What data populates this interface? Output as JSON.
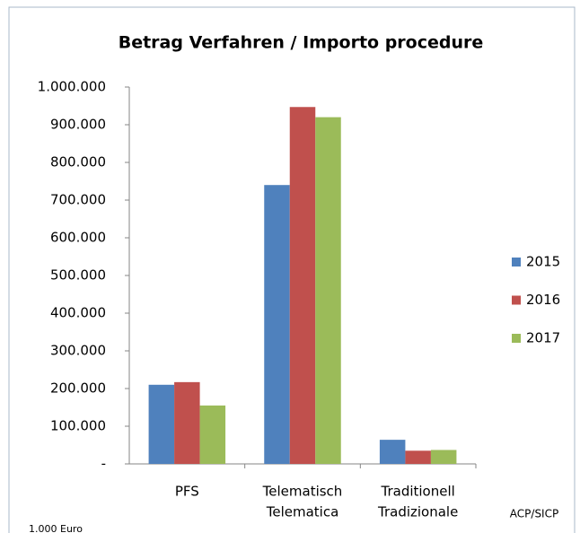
{
  "chart_data": {
    "type": "bar",
    "title": "Betrag Verfahren / Importo procedure",
    "categories": [
      [
        "PFS"
      ],
      [
        "Telematisch",
        "Telematica"
      ],
      [
        "Traditionell",
        "Tradizionale"
      ]
    ],
    "series": [
      {
        "name": "2015",
        "color": "#4f81bd",
        "values": [
          210000,
          740000,
          64000
        ]
      },
      {
        "name": "2016",
        "color": "#c0504d",
        "values": [
          217000,
          947000,
          35000
        ]
      },
      {
        "name": "2017",
        "color": "#9bbb59",
        "values": [
          155000,
          920000,
          37000
        ]
      }
    ],
    "ylim": [
      0,
      1000000
    ],
    "yticks": [
      {
        "value": 0,
        "label": "-"
      },
      {
        "value": 100000,
        "label": "100.000"
      },
      {
        "value": 200000,
        "label": "200.000"
      },
      {
        "value": 300000,
        "label": "300.000"
      },
      {
        "value": 400000,
        "label": "400.000"
      },
      {
        "value": 500000,
        "label": "500.000"
      },
      {
        "value": 600000,
        "label": "600.000"
      },
      {
        "value": 700000,
        "label": "700.000"
      },
      {
        "value": 800000,
        "label": "800.000"
      },
      {
        "value": 900000,
        "label": "900.000"
      },
      {
        "value": 1000000,
        "label": "1.000.000"
      }
    ],
    "grid": false,
    "legend": "right",
    "annotations": [
      "1.000 Euro",
      "ACP/SICP"
    ]
  }
}
